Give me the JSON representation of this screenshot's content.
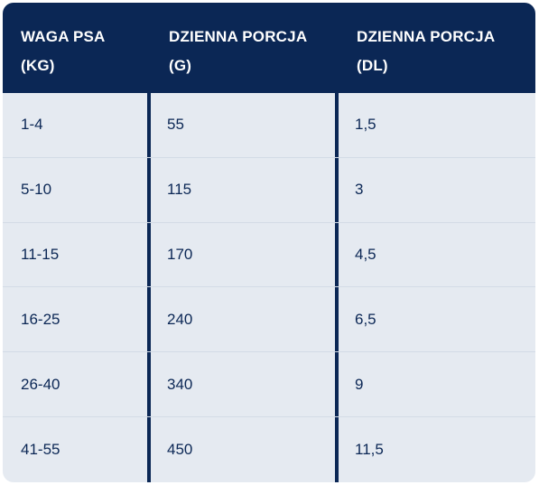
{
  "table": {
    "headers": [
      {
        "line1": "WAGA PSA",
        "line2": "(KG)"
      },
      {
        "line1": "DZIENNA PORCJA",
        "line2": "(G)"
      },
      {
        "line1": "DZIENNA PORCJA",
        "line2": "(DL)"
      }
    ],
    "rows": [
      [
        "1-4",
        "55",
        "1,5"
      ],
      [
        "5-10",
        "115",
        "3"
      ],
      [
        "11-15",
        "170",
        "4,5"
      ],
      [
        "16-25",
        "240",
        "6,5"
      ],
      [
        "26-40",
        "340",
        "9"
      ],
      [
        "41-55",
        "450",
        "11,5"
      ]
    ]
  },
  "colors": {
    "header_bg": "#0b2755",
    "row_bg": "#e5eaf1",
    "text": "#0b2755"
  }
}
